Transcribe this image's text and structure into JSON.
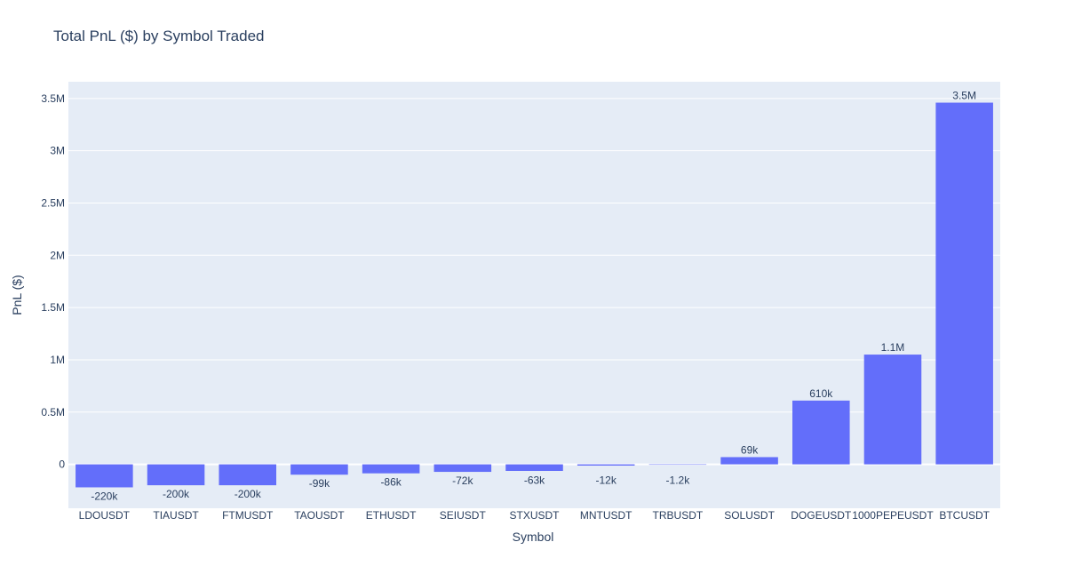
{
  "chart_data": {
    "type": "bar",
    "title": "Total PnL ($) by Symbol Traded",
    "xlabel": "Symbol",
    "ylabel": "PnL ($)",
    "categories": [
      "LDOUSDT",
      "TIAUSDT",
      "FTMUSDT",
      "TAOUSDT",
      "ETHUSDT",
      "SEIUSDT",
      "STXUSDT",
      "MNTUSDT",
      "TRBUSDT",
      "SOLUSDT",
      "DOGEUSDT",
      "1000PEPEUSDT",
      "BTCUSDT"
    ],
    "values": [
      -220000,
      -200000,
      -200000,
      -99000,
      -86000,
      -72000,
      -63000,
      -12000,
      -1200,
      69000,
      610000,
      1050000,
      3460000
    ],
    "data_labels": [
      "-220k",
      "-200k",
      "-200k",
      "-99k",
      "-86k",
      "-72k",
      "-63k",
      "-12k",
      "-1.2k",
      "69k",
      "610k",
      "1.1M",
      "3.5M"
    ],
    "ylim": [
      -420000,
      3660000
    ],
    "yticks": [
      0,
      500000,
      1000000,
      1500000,
      2000000,
      2500000,
      3000000,
      3500000
    ],
    "ytick_labels": [
      "0",
      "0.5M",
      "1M",
      "1.5M",
      "2M",
      "2.5M",
      "3M",
      "3.5M"
    ],
    "grid": true,
    "colors": {
      "bar": "#636efa",
      "plot_bg": "#e5ecf6",
      "grid": "#ffffff",
      "text": "#2a3f5f"
    }
  }
}
